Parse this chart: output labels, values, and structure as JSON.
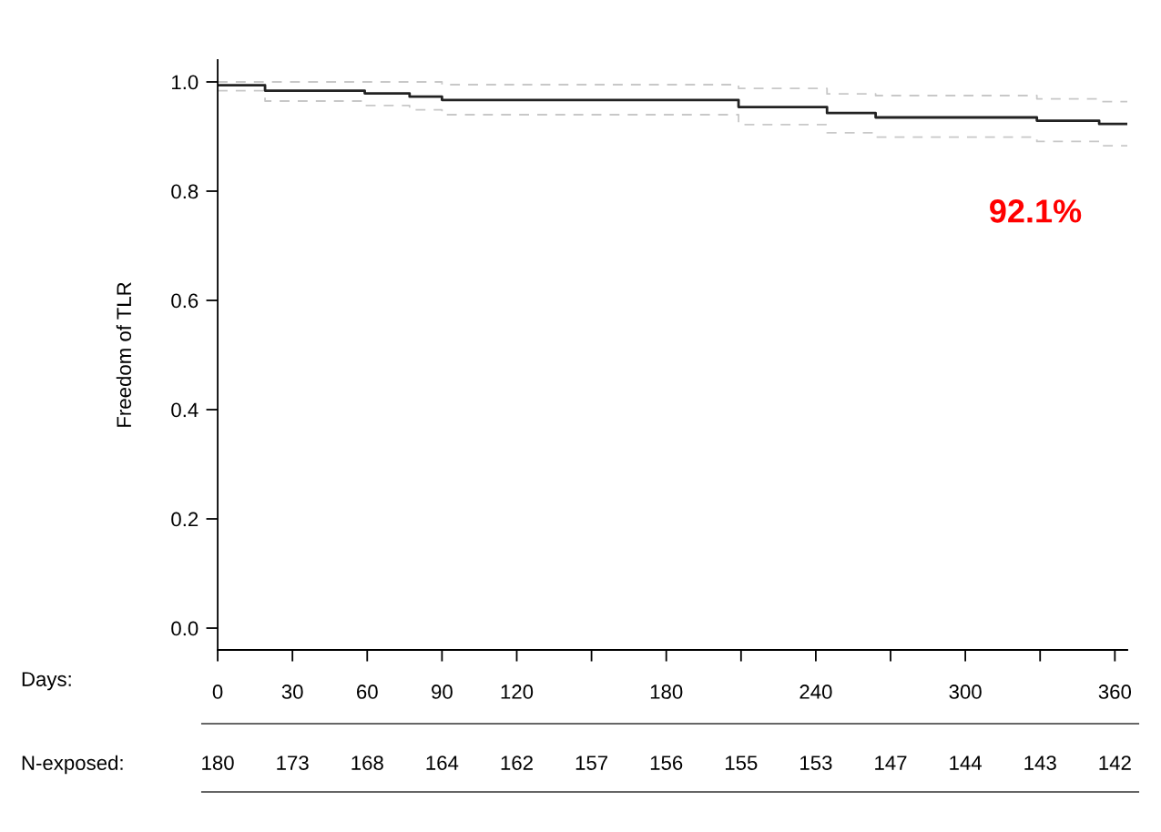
{
  "chart_data": {
    "type": "step",
    "ylabel": "Freedom of TLR",
    "xlabel": "Days:",
    "xlim": [
      0,
      365
    ],
    "ylim": [
      -0.04,
      1.04
    ],
    "xticks": [
      0,
      30,
      60,
      90,
      120,
      {
        "value": 150,
        "label": null
      },
      180,
      {
        "value": 210,
        "label": null
      },
      240,
      {
        "value": 270,
        "label": null
      },
      300,
      {
        "value": 330,
        "label": null
      },
      360
    ],
    "yticks": [
      {
        "value": 0,
        "label": "0.0"
      },
      0.2,
      0.4,
      0.6,
      0.8,
      {
        "value": 1,
        "label": "1.0"
      }
    ],
    "grid": false,
    "line_style": "solid",
    "series": [
      {
        "color": "#222222",
        "x": [
          0,
          19,
          59,
          77,
          90,
          209,
          244.5,
          264,
          328.7,
          353.7,
          365
        ],
        "values": [
          0.994,
          0.984,
          0.979,
          0.973,
          0.967,
          0.954,
          0.943,
          0.935,
          0.929,
          0.923,
          0.923
        ]
      },
      {
        "color": "#c8c8c8",
        "line_style": "dashed",
        "x": [
          0,
          19,
          59,
          77,
          90,
          209,
          244.5,
          264,
          328.7,
          353.7,
          365
        ],
        "values": [
          0.984,
          0.965,
          0.957,
          0.949,
          0.94,
          0.922,
          0.907,
          0.899,
          0.891,
          0.883,
          0.883
        ]
      },
      {
        "color": "#c8c8c8",
        "line_style": "dashed",
        "x": [
          0,
          90,
          209,
          244.5,
          264,
          328.7,
          353.7,
          365
        ],
        "values": [
          1.0,
          0.995,
          0.988,
          0.978,
          0.975,
          0.969,
          0.964,
          0.964
        ]
      }
    ],
    "annotations": [
      "92.1%",
      "N-exposed:",
      "180",
      "173",
      "168",
      "164",
      "162",
      "157",
      "156",
      "155",
      "153",
      "147",
      "144",
      "143",
      "142"
    ]
  }
}
